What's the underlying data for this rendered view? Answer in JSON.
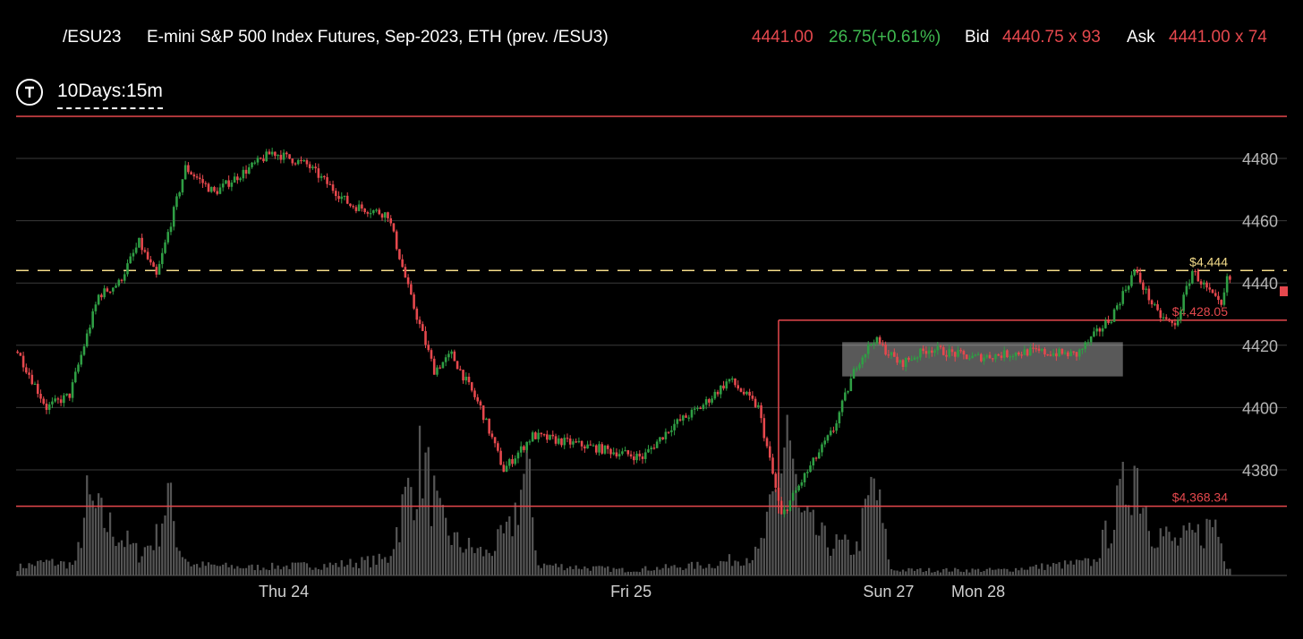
{
  "header": {
    "symbol": "/ESU23",
    "description": "E-mini S&P 500 Index Futures, Sep-2023, ETH (prev. /ESU3)",
    "last_price": "4441.00",
    "change": "26.75(+0.61%)",
    "bid_label": "Bid",
    "bid_value": "4440.75 x 93",
    "ask_label": "Ask",
    "ask_value": "4441.00 x 74"
  },
  "interval": {
    "icon": "T",
    "label": "10Days:15m"
  },
  "colors": {
    "background": "#000000",
    "up": "#2f9e44",
    "down": "#e5484d",
    "price_red": "#e5484d",
    "change_green": "#3fb950",
    "level_line": "#e5484d",
    "dashed_line": "#f5dd8a",
    "volume": "#555555",
    "grid": "#3a3a3a"
  },
  "chart_data": {
    "type": "candlestick",
    "y_ticks": [
      "4480",
      "4460",
      "4440",
      "4420",
      "4400",
      "4380"
    ],
    "ylim": [
      4360,
      4487
    ],
    "x_ticks": [
      "Thu 24",
      "Fri 25",
      "Sun 27",
      "Mon 28"
    ],
    "levels": [
      {
        "value": 4428.05,
        "label": "$4,428.05",
        "style": "solid"
      },
      {
        "value": 4368.34,
        "label": "$4,368.34",
        "style": "solid"
      },
      {
        "value": 4444,
        "label": "$4,444",
        "style": "dashed"
      }
    ],
    "consolidation_box": {
      "low": 4410,
      "high": 4421
    },
    "path": [
      [
        0,
        4418
      ],
      [
        10,
        4400
      ],
      [
        18,
        4404
      ],
      [
        28,
        4436
      ],
      [
        35,
        4440
      ],
      [
        42,
        4453
      ],
      [
        48,
        4442
      ],
      [
        58,
        4477
      ],
      [
        68,
        4469
      ],
      [
        88,
        4482
      ],
      [
        100,
        4478
      ],
      [
        115,
        4465
      ],
      [
        128,
        4462
      ],
      [
        136,
        4435
      ],
      [
        144,
        4412
      ],
      [
        150,
        4417
      ],
      [
        160,
        4400
      ],
      [
        168,
        4380
      ],
      [
        178,
        4391
      ],
      [
        200,
        4387
      ],
      [
        216,
        4384
      ],
      [
        226,
        4394
      ],
      [
        236,
        4400
      ],
      [
        246,
        4409
      ],
      [
        256,
        4400
      ],
      [
        260,
        4383
      ],
      [
        264,
        4365
      ],
      [
        272,
        4378
      ],
      [
        282,
        4393
      ],
      [
        290,
        4414
      ],
      [
        296,
        4422
      ],
      [
        305,
        4414
      ],
      [
        315,
        4419
      ],
      [
        330,
        4416
      ],
      [
        350,
        4418
      ],
      [
        366,
        4417
      ],
      [
        378,
        4429
      ],
      [
        386,
        4444
      ],
      [
        394,
        4430
      ],
      [
        400,
        4426
      ],
      [
        406,
        4444
      ],
      [
        416,
        4432
      ],
      [
        418,
        4441
      ]
    ],
    "volume": [
      [
        0,
        3
      ],
      [
        10,
        5
      ],
      [
        20,
        4
      ],
      [
        24,
        27
      ],
      [
        30,
        20
      ],
      [
        36,
        14
      ],
      [
        42,
        8
      ],
      [
        48,
        14
      ],
      [
        52,
        30
      ],
      [
        56,
        10
      ],
      [
        60,
        4
      ],
      [
        80,
        3
      ],
      [
        110,
        4
      ],
      [
        128,
        6
      ],
      [
        134,
        28
      ],
      [
        140,
        43
      ],
      [
        146,
        20
      ],
      [
        152,
        12
      ],
      [
        162,
        8
      ],
      [
        170,
        16
      ],
      [
        176,
        40
      ],
      [
        180,
        4
      ],
      [
        210,
        2
      ],
      [
        240,
        4
      ],
      [
        256,
        8
      ],
      [
        262,
        28
      ],
      [
        266,
        60
      ],
      [
        270,
        22
      ],
      [
        280,
        12
      ],
      [
        290,
        10
      ],
      [
        296,
        35
      ],
      [
        302,
        2
      ],
      [
        340,
        2
      ],
      [
        372,
        5
      ],
      [
        380,
        24
      ],
      [
        386,
        42
      ],
      [
        392,
        18
      ],
      [
        400,
        12
      ],
      [
        408,
        15
      ],
      [
        414,
        20
      ],
      [
        418,
        4
      ]
    ],
    "volume_ylim": [
      0,
      100
    ],
    "n_bars": 420
  }
}
